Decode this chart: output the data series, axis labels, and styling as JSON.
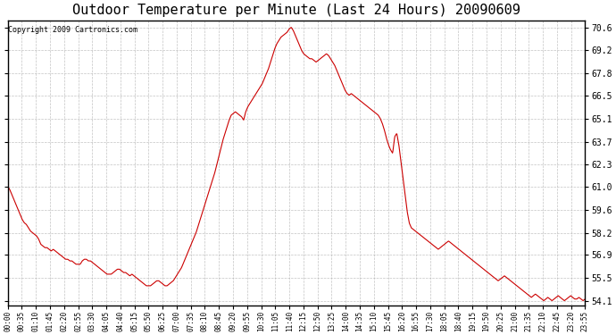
{
  "title": "Outdoor Temperature per Minute (Last 24 Hours) 20090609",
  "copyright_text": "Copyright 2009 Cartronics.com",
  "line_color": "#cc0000",
  "bg_color": "#ffffff",
  "plot_bg_color": "#ffffff",
  "grid_color": "#aaaaaa",
  "yticks": [
    54.1,
    55.5,
    56.9,
    58.2,
    59.6,
    61.0,
    62.3,
    63.7,
    65.1,
    66.5,
    67.8,
    69.2,
    70.6
  ],
  "ylim": [
    53.8,
    71.0
  ],
  "xtick_labels": [
    "00:00",
    "00:35",
    "01:10",
    "01:45",
    "02:20",
    "02:55",
    "03:30",
    "04:05",
    "04:40",
    "05:15",
    "05:50",
    "06:25",
    "07:00",
    "07:35",
    "08:10",
    "08:45",
    "09:20",
    "09:55",
    "10:30",
    "11:05",
    "11:40",
    "12:15",
    "12:50",
    "13:25",
    "14:00",
    "14:35",
    "15:10",
    "15:45",
    "16:20",
    "16:55",
    "17:30",
    "18:05",
    "18:40",
    "19:15",
    "19:50",
    "20:25",
    "21:00",
    "21:35",
    "22:10",
    "22:45",
    "23:20",
    "23:55"
  ],
  "temperature_profile": [
    61.0,
    60.8,
    60.5,
    60.2,
    59.9,
    59.6,
    59.3,
    59.0,
    58.8,
    58.7,
    58.5,
    58.3,
    58.2,
    58.1,
    58.0,
    57.8,
    57.5,
    57.4,
    57.3,
    57.3,
    57.2,
    57.1,
    57.2,
    57.1,
    57.0,
    56.9,
    56.8,
    56.7,
    56.6,
    56.6,
    56.5,
    56.5,
    56.4,
    56.3,
    56.3,
    56.3,
    56.5,
    56.6,
    56.6,
    56.5,
    56.5,
    56.4,
    56.3,
    56.2,
    56.1,
    56.0,
    55.9,
    55.8,
    55.7,
    55.7,
    55.7,
    55.8,
    55.9,
    56.0,
    56.0,
    55.9,
    55.8,
    55.8,
    55.7,
    55.6,
    55.7,
    55.6,
    55.5,
    55.4,
    55.3,
    55.2,
    55.1,
    55.0,
    55.0,
    55.0,
    55.1,
    55.2,
    55.3,
    55.3,
    55.2,
    55.1,
    55.0,
    55.0,
    55.1,
    55.2,
    55.3,
    55.5,
    55.7,
    55.9,
    56.1,
    56.4,
    56.7,
    57.0,
    57.3,
    57.6,
    57.9,
    58.2,
    58.6,
    59.0,
    59.4,
    59.8,
    60.2,
    60.6,
    61.0,
    61.4,
    61.8,
    62.3,
    62.8,
    63.3,
    63.8,
    64.2,
    64.6,
    65.0,
    65.3,
    65.4,
    65.5,
    65.4,
    65.3,
    65.2,
    65.0,
    65.5,
    65.8,
    66.0,
    66.2,
    66.4,
    66.6,
    66.8,
    67.0,
    67.2,
    67.5,
    67.8,
    68.1,
    68.5,
    68.9,
    69.3,
    69.6,
    69.8,
    70.0,
    70.1,
    70.2,
    70.3,
    70.5,
    70.6,
    70.4,
    70.1,
    69.8,
    69.5,
    69.2,
    69.0,
    68.9,
    68.8,
    68.7,
    68.7,
    68.6,
    68.5,
    68.6,
    68.7,
    68.8,
    68.9,
    69.0,
    68.9,
    68.7,
    68.5,
    68.3,
    68.0,
    67.7,
    67.4,
    67.1,
    66.8,
    66.6,
    66.5,
    66.6,
    66.5,
    66.4,
    66.3,
    66.2,
    66.1,
    66.0,
    65.9,
    65.8,
    65.7,
    65.6,
    65.5,
    65.4,
    65.3,
    65.1,
    64.8,
    64.4,
    63.9,
    63.5,
    63.2,
    63.0,
    64.0,
    64.2,
    63.5,
    62.5,
    61.5,
    60.5,
    59.5,
    58.8,
    58.5,
    58.4,
    58.3,
    58.2,
    58.1,
    58.0,
    57.9,
    57.8,
    57.7,
    57.6,
    57.5,
    57.4,
    57.3,
    57.2,
    57.3,
    57.4,
    57.5,
    57.6,
    57.7,
    57.6,
    57.5,
    57.4,
    57.3,
    57.2,
    57.1,
    57.0,
    56.9,
    56.8,
    56.7,
    56.6,
    56.5,
    56.4,
    56.3,
    56.2,
    56.1,
    56.0,
    55.9,
    55.8,
    55.7,
    55.6,
    55.5,
    55.4,
    55.3,
    55.4,
    55.5,
    55.6,
    55.5,
    55.4,
    55.3,
    55.2,
    55.1,
    55.0,
    54.9,
    54.8,
    54.7,
    54.6,
    54.5,
    54.4,
    54.3,
    54.4,
    54.5,
    54.4,
    54.3,
    54.2,
    54.1,
    54.2,
    54.3,
    54.2,
    54.1,
    54.2,
    54.3,
    54.4,
    54.3,
    54.2,
    54.1,
    54.2,
    54.3,
    54.4,
    54.3,
    54.2,
    54.2,
    54.3,
    54.2,
    54.1,
    54.2
  ]
}
